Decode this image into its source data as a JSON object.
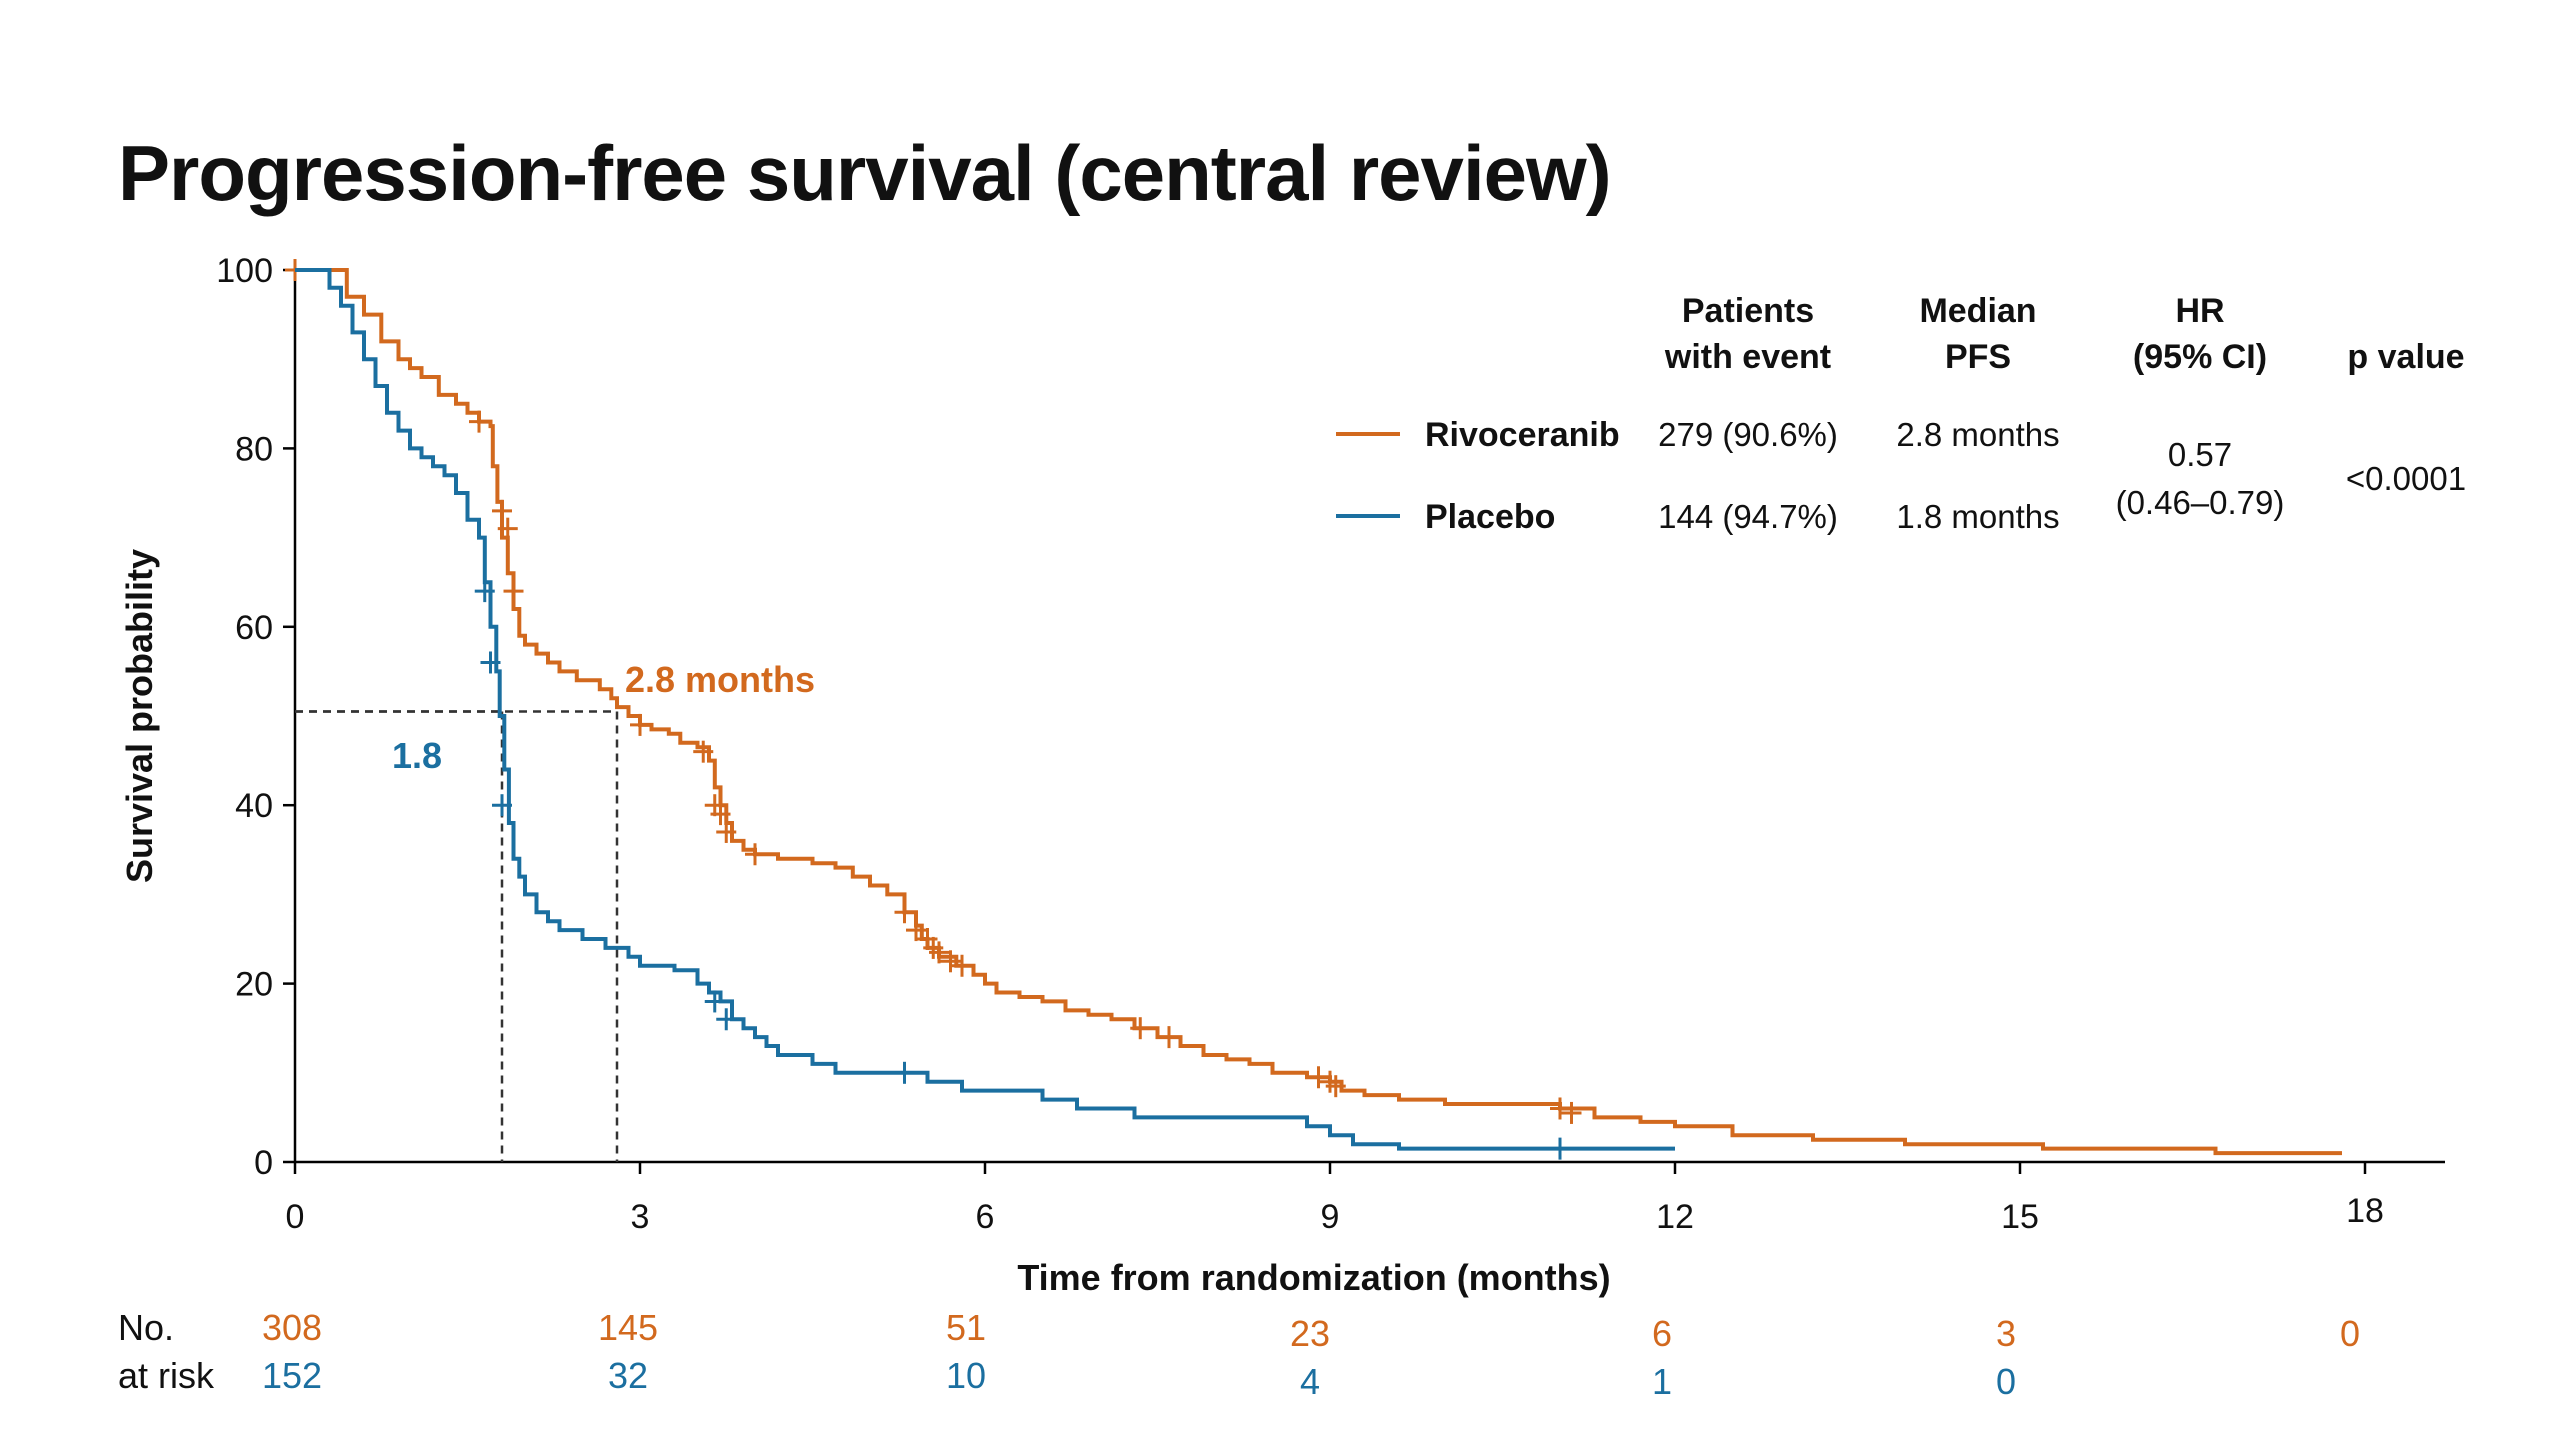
{
  "title": "Progression-free survival (central review)",
  "chart_data": {
    "type": "line",
    "subtype": "kaplan-meier",
    "xlabel": "Time from randomization (months)",
    "ylabel": "Survival probability",
    "xlim": [
      0,
      18
    ],
    "ylim": [
      0,
      100
    ],
    "xticks": [
      0,
      3,
      6,
      9,
      12,
      15,
      18
    ],
    "yticks": [
      0,
      20,
      40,
      60,
      80,
      100
    ],
    "grid": false,
    "legend_position": "top-right",
    "colors": {
      "rivoceranib": "#D2691E",
      "placebo": "#1B6FA0"
    },
    "series": [
      {
        "name": "Rivoceranib",
        "color": "#D2691E",
        "steps": [
          [
            0,
            100
          ],
          [
            0.3,
            100
          ],
          [
            0.45,
            97
          ],
          [
            0.6,
            95
          ],
          [
            0.75,
            92
          ],
          [
            0.9,
            90
          ],
          [
            1.0,
            89
          ],
          [
            1.1,
            88
          ],
          [
            1.25,
            86
          ],
          [
            1.4,
            85
          ],
          [
            1.5,
            84
          ],
          [
            1.6,
            83
          ],
          [
            1.7,
            82.5
          ],
          [
            1.72,
            78
          ],
          [
            1.76,
            74
          ],
          [
            1.8,
            70
          ],
          [
            1.85,
            66
          ],
          [
            1.9,
            62
          ],
          [
            1.95,
            59
          ],
          [
            2.0,
            58
          ],
          [
            2.1,
            57
          ],
          [
            2.2,
            56
          ],
          [
            2.3,
            55
          ],
          [
            2.45,
            54
          ],
          [
            2.65,
            53
          ],
          [
            2.75,
            52
          ],
          [
            2.8,
            51
          ],
          [
            2.9,
            50
          ],
          [
            3.0,
            49
          ],
          [
            3.1,
            48.5
          ],
          [
            3.25,
            48
          ],
          [
            3.35,
            47
          ],
          [
            3.5,
            46.5
          ],
          [
            3.6,
            45
          ],
          [
            3.65,
            42
          ],
          [
            3.7,
            40
          ],
          [
            3.75,
            38
          ],
          [
            3.8,
            36
          ],
          [
            3.9,
            35
          ],
          [
            4.0,
            34.5
          ],
          [
            4.2,
            34
          ],
          [
            4.5,
            33.5
          ],
          [
            4.7,
            33
          ],
          [
            4.85,
            32
          ],
          [
            5.0,
            31
          ],
          [
            5.15,
            30
          ],
          [
            5.3,
            28
          ],
          [
            5.4,
            26.5
          ],
          [
            5.45,
            25
          ],
          [
            5.5,
            24
          ],
          [
            5.6,
            23
          ],
          [
            5.75,
            22
          ],
          [
            5.9,
            21
          ],
          [
            6.0,
            20
          ],
          [
            6.1,
            19
          ],
          [
            6.3,
            18.5
          ],
          [
            6.5,
            18
          ],
          [
            6.7,
            17
          ],
          [
            6.9,
            16.5
          ],
          [
            7.1,
            16
          ],
          [
            7.3,
            15
          ],
          [
            7.5,
            14
          ],
          [
            7.7,
            13
          ],
          [
            7.9,
            12
          ],
          [
            8.1,
            11.5
          ],
          [
            8.3,
            11
          ],
          [
            8.5,
            10
          ],
          [
            8.8,
            9.5
          ],
          [
            9.0,
            9
          ],
          [
            9.1,
            8
          ],
          [
            9.3,
            7.5
          ],
          [
            9.6,
            7
          ],
          [
            10.0,
            6.5
          ],
          [
            10.5,
            6.5
          ],
          [
            11.0,
            6
          ],
          [
            11.3,
            5
          ],
          [
            11.7,
            4.5
          ],
          [
            12.0,
            4
          ],
          [
            12.5,
            3
          ],
          [
            13.2,
            2.5
          ],
          [
            14.0,
            2
          ],
          [
            15.2,
            1.5
          ],
          [
            16.0,
            1.5
          ],
          [
            16.7,
            1
          ],
          [
            17.8,
            1
          ]
        ],
        "censor": [
          [
            0,
            100
          ],
          [
            1.6,
            83
          ],
          [
            1.8,
            73
          ],
          [
            1.85,
            71
          ],
          [
            1.9,
            64
          ],
          [
            3.0,
            49
          ],
          [
            3.55,
            46
          ],
          [
            3.65,
            40
          ],
          [
            3.7,
            39
          ],
          [
            3.75,
            37
          ],
          [
            4.0,
            34.5
          ],
          [
            5.3,
            28
          ],
          [
            5.4,
            26
          ],
          [
            5.5,
            25
          ],
          [
            5.55,
            24
          ],
          [
            5.6,
            23.5
          ],
          [
            5.7,
            22.5
          ],
          [
            5.8,
            22
          ],
          [
            7.35,
            15
          ],
          [
            7.6,
            14
          ],
          [
            8.9,
            9.5
          ],
          [
            9.0,
            9
          ],
          [
            9.05,
            8.5
          ],
          [
            11.0,
            6
          ],
          [
            11.1,
            5.5
          ]
        ]
      },
      {
        "name": "Placebo",
        "color": "#1B6FA0",
        "steps": [
          [
            0,
            100
          ],
          [
            0.25,
            100
          ],
          [
            0.3,
            98
          ],
          [
            0.4,
            96
          ],
          [
            0.5,
            93
          ],
          [
            0.6,
            90
          ],
          [
            0.7,
            87
          ],
          [
            0.8,
            84
          ],
          [
            0.9,
            82
          ],
          [
            1.0,
            80
          ],
          [
            1.1,
            79
          ],
          [
            1.2,
            78
          ],
          [
            1.3,
            77
          ],
          [
            1.4,
            75
          ],
          [
            1.5,
            72
          ],
          [
            1.6,
            70
          ],
          [
            1.65,
            65
          ],
          [
            1.7,
            60
          ],
          [
            1.75,
            55
          ],
          [
            1.78,
            50
          ],
          [
            1.82,
            44
          ],
          [
            1.86,
            38
          ],
          [
            1.9,
            34
          ],
          [
            1.95,
            32
          ],
          [
            2.0,
            30
          ],
          [
            2.1,
            28
          ],
          [
            2.2,
            27
          ],
          [
            2.3,
            26
          ],
          [
            2.5,
            25
          ],
          [
            2.7,
            24
          ],
          [
            2.9,
            23
          ],
          [
            3.0,
            22
          ],
          [
            3.3,
            21.5
          ],
          [
            3.5,
            20
          ],
          [
            3.6,
            19
          ],
          [
            3.7,
            18
          ],
          [
            3.8,
            16
          ],
          [
            3.9,
            15
          ],
          [
            4.0,
            14
          ],
          [
            4.1,
            13
          ],
          [
            4.2,
            12
          ],
          [
            4.5,
            11
          ],
          [
            4.7,
            10
          ],
          [
            5.5,
            9
          ],
          [
            5.8,
            8
          ],
          [
            6.0,
            8
          ],
          [
            6.5,
            7
          ],
          [
            6.8,
            6
          ],
          [
            7.3,
            5
          ],
          [
            8.8,
            4
          ],
          [
            9.0,
            3
          ],
          [
            9.2,
            2
          ],
          [
            9.6,
            1.5
          ],
          [
            12.0,
            1.5
          ]
        ],
        "censor": [
          [
            1.65,
            64
          ],
          [
            1.7,
            56
          ],
          [
            1.8,
            40
          ],
          [
            3.65,
            18
          ],
          [
            3.75,
            16
          ],
          [
            5.3,
            10
          ],
          [
            11.0,
            1.5
          ]
        ]
      }
    ],
    "median_lines": [
      {
        "x": 1.8,
        "y": 50.5,
        "label": "1.8",
        "color": "#1B6FA0"
      },
      {
        "x": 2.8,
        "y": 50.5,
        "label": "2.8 months",
        "color": "#D2691E"
      }
    ]
  },
  "table": {
    "headers": [
      "Patients\nwith event",
      "Median\nPFS",
      "HR\n(95% CI)",
      "p value"
    ],
    "rows": [
      {
        "arm": "Rivoceranib",
        "events": "279 (90.6%)",
        "median": "2.8 months"
      },
      {
        "arm": "Placebo",
        "events": "144 (94.7%)",
        "median": "1.8 months"
      }
    ],
    "hr_line1": "0.57",
    "hr_line2": "(0.46–0.79)",
    "p_value": "<0.0001"
  },
  "at_risk": {
    "label_line1": "No.",
    "label_line2": "at risk",
    "rivoceranib": [
      "308",
      "145",
      "51",
      "23",
      "6",
      "3",
      "0"
    ],
    "placebo": [
      "152",
      "32",
      "10",
      "4",
      "1",
      "0"
    ]
  }
}
